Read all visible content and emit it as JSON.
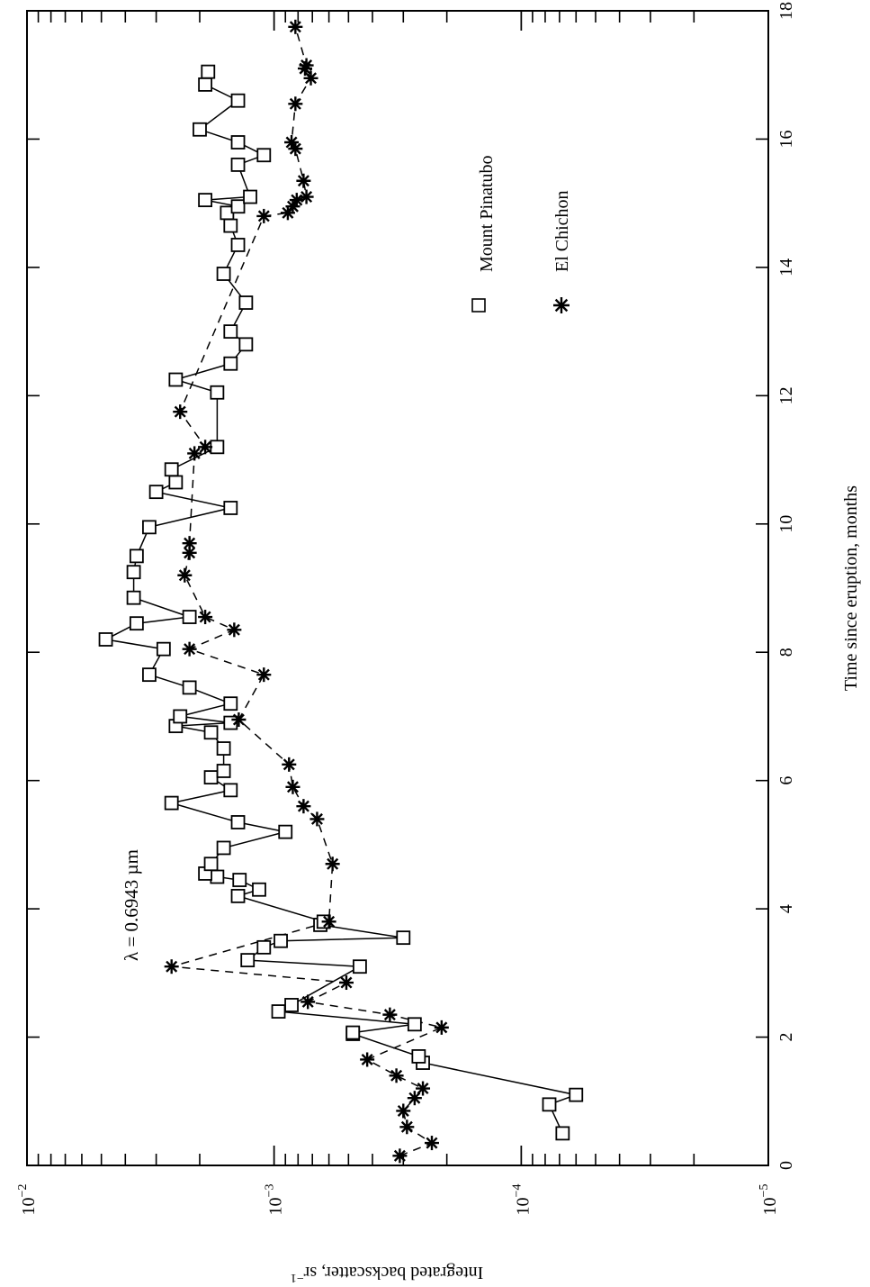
{
  "chart_data": {
    "type": "line",
    "xlabel": "Time since eruption, months",
    "ylabel": "Integrated backscatter, sr",
    "ylabel_exponent": "−1",
    "annotation": "λ = 0.6943 µm",
    "xlim": [
      0,
      18
    ],
    "ylim": [
      1e-05,
      0.01
    ],
    "yscale": "log",
    "x_ticks": [
      0,
      2,
      4,
      6,
      8,
      10,
      12,
      14,
      16,
      18
    ],
    "y_ticks": [
      {
        "value": 0.01,
        "base": "10",
        "exp": "−2"
      },
      {
        "value": 0.001,
        "base": "10",
        "exp": "−3"
      },
      {
        "value": 0.0001,
        "base": "10",
        "exp": "−4"
      },
      {
        "value": 1e-05,
        "base": "10",
        "exp": "−5"
      }
    ],
    "grid": false,
    "legend_position": "top-right",
    "series": [
      {
        "name": "Mount Pinatubo",
        "marker": "square",
        "line_style": "solid",
        "points": [
          [
            0.5,
            6.8e-05
          ],
          [
            0.95,
            7.7e-05
          ],
          [
            1.1,
            6e-05
          ],
          [
            1.6,
            0.00025
          ],
          [
            1.7,
            0.00026
          ],
          [
            2.05,
            0.00048
          ],
          [
            2.07,
            0.00048
          ],
          [
            2.2,
            0.00027
          ],
          [
            2.4,
            0.00096
          ],
          [
            2.5,
            0.00085
          ],
          [
            3.1,
            0.00045
          ],
          [
            3.2,
            0.00128
          ],
          [
            3.4,
            0.0011
          ],
          [
            3.5,
            0.00094
          ],
          [
            3.55,
            0.0003
          ],
          [
            3.75,
            0.00065
          ],
          [
            3.8,
            0.00063
          ],
          [
            4.2,
            0.0014
          ],
          [
            4.3,
            0.00115
          ],
          [
            4.45,
            0.00138
          ],
          [
            4.5,
            0.0017
          ],
          [
            4.55,
            0.0019
          ],
          [
            4.7,
            0.0018
          ],
          [
            4.95,
            0.0016
          ],
          [
            5.2,
            0.0009
          ],
          [
            5.35,
            0.0014
          ],
          [
            5.65,
            0.0026
          ],
          [
            5.85,
            0.0015
          ],
          [
            6.05,
            0.0018
          ],
          [
            6.15,
            0.0016
          ],
          [
            6.5,
            0.0016
          ],
          [
            6.75,
            0.0018
          ],
          [
            6.85,
            0.0025
          ],
          [
            6.9,
            0.0015
          ],
          [
            7.0,
            0.0024
          ],
          [
            7.2,
            0.0015
          ],
          [
            7.45,
            0.0022
          ],
          [
            7.65,
            0.0032
          ],
          [
            8.05,
            0.0028
          ],
          [
            8.2,
            0.0048
          ],
          [
            8.45,
            0.0036
          ],
          [
            8.55,
            0.0022
          ],
          [
            8.85,
            0.0037
          ],
          [
            9.25,
            0.0037
          ],
          [
            9.5,
            0.0036
          ],
          [
            9.95,
            0.0032
          ],
          [
            10.25,
            0.0015
          ],
          [
            10.5,
            0.003
          ],
          [
            10.65,
            0.0025
          ],
          [
            10.85,
            0.0026
          ],
          [
            11.2,
            0.0017
          ],
          [
            12.05,
            0.0017
          ],
          [
            12.25,
            0.0025
          ],
          [
            12.5,
            0.0015
          ],
          [
            12.8,
            0.0013
          ],
          [
            13.0,
            0.0015
          ],
          [
            13.45,
            0.0013
          ],
          [
            13.9,
            0.0016
          ],
          [
            14.35,
            0.0014
          ],
          [
            14.65,
            0.0015
          ],
          [
            14.85,
            0.00155
          ],
          [
            14.95,
            0.0014
          ],
          [
            15.05,
            0.0019
          ],
          [
            15.1,
            0.00125
          ],
          [
            15.6,
            0.0014
          ],
          [
            15.75,
            0.0011
          ],
          [
            15.95,
            0.0014
          ],
          [
            16.15,
            0.002
          ],
          [
            16.6,
            0.0014
          ],
          [
            16.85,
            0.0019
          ],
          [
            17.05,
            0.00185
          ]
        ]
      },
      {
        "name": "El Chichon",
        "marker": "asterisk",
        "line_style": "dashed",
        "points": [
          [
            0.15,
            0.00031
          ],
          [
            0.35,
            0.00023
          ],
          [
            0.6,
            0.00029
          ],
          [
            0.85,
            0.0003
          ],
          [
            1.05,
            0.00027
          ],
          [
            1.2,
            0.00025
          ],
          [
            1.4,
            0.00032
          ],
          [
            1.65,
            0.00042
          ],
          [
            2.15,
            0.00021
          ],
          [
            2.35,
            0.00034
          ],
          [
            2.55,
            0.00073
          ],
          [
            2.85,
            0.00051
          ],
          [
            3.1,
            0.0026
          ],
          [
            3.8,
            0.0006
          ],
          [
            4.7,
            0.00058
          ],
          [
            5.4,
            0.00067
          ],
          [
            5.6,
            0.00076
          ],
          [
            5.9,
            0.00084
          ],
          [
            6.25,
            0.00087
          ],
          [
            6.95,
            0.00139
          ],
          [
            7.65,
            0.0011
          ],
          [
            8.05,
            0.0022
          ],
          [
            8.35,
            0.00145
          ],
          [
            8.55,
            0.0019
          ],
          [
            9.2,
            0.0023
          ],
          [
            9.55,
            0.0022
          ],
          [
            9.7,
            0.0022
          ],
          [
            11.1,
            0.0021
          ],
          [
            11.2,
            0.0019
          ],
          [
            11.75,
            0.0024
          ],
          [
            14.8,
            0.0011
          ],
          [
            14.85,
            0.00088
          ],
          [
            14.95,
            0.00084
          ],
          [
            15.05,
            0.00081
          ],
          [
            15.1,
            0.00074
          ],
          [
            15.35,
            0.00076
          ],
          [
            15.85,
            0.00082
          ],
          [
            15.95,
            0.00085
          ],
          [
            16.55,
            0.00082
          ],
          [
            16.95,
            0.00071
          ],
          [
            17.1,
            0.00075
          ],
          [
            17.15,
            0.00074
          ],
          [
            17.75,
            0.00082
          ]
        ]
      }
    ]
  }
}
